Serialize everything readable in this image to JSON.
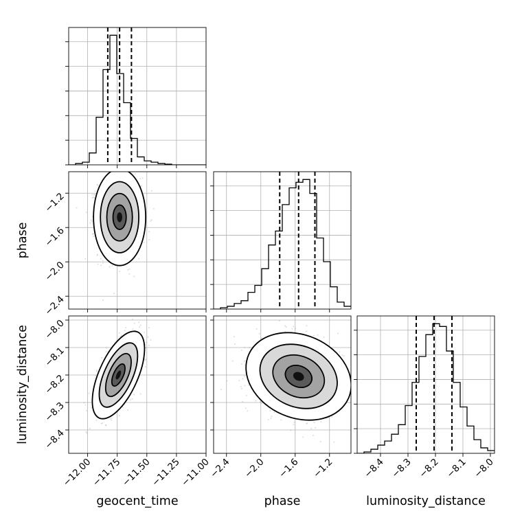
{
  "chart_data": {
    "type": "corner",
    "grid": true,
    "parameters": [
      {
        "name": "geocent_time",
        "label": "geocent_time",
        "range": [
          -12.16,
          -11.0
        ],
        "ticks": [
          -12.0,
          -11.75,
          -11.5,
          -11.25,
          -11.0
        ],
        "tick_labels": [
          "−12.00",
          "−11.75",
          "−11.50",
          "−11.25",
          "−11.00"
        ],
        "quantiles": [
          -11.83,
          -11.73,
          -11.63
        ],
        "median": -11.73
      },
      {
        "name": "phase",
        "label": "phase",
        "range": [
          -2.55,
          -0.95
        ],
        "ticks": [
          -2.4,
          -2.0,
          -1.6,
          -1.2
        ],
        "tick_labels": [
          "−2.4",
          "−2.0",
          "−1.6",
          "−1.2"
        ],
        "quantiles": [
          -1.78,
          -1.56,
          -1.37
        ],
        "median": -1.56
      },
      {
        "name": "luminosity_distance",
        "label": "luminosity_distance",
        "range": [
          -8.485,
          -7.985
        ],
        "ticks": [
          -8.4,
          -8.3,
          -8.2,
          -8.1,
          -8.0
        ],
        "tick_labels": [
          "−8.4",
          "−8.3",
          "−8.2",
          "−8.1",
          "−8.0"
        ],
        "quantiles": [
          -8.27,
          -8.205,
          -8.14
        ],
        "median": -8.205
      }
    ],
    "histograms": [
      {
        "param": "geocent_time",
        "bin_edges": [
          -12.16,
          -12.102,
          -12.044,
          -11.986,
          -11.928,
          -11.87,
          -11.812,
          -11.754,
          -11.696,
          -11.638,
          -11.58,
          -11.522,
          -11.464,
          -11.406,
          -11.348,
          -11.29,
          -11.232,
          -11.174,
          -11.116,
          -11.058,
          -11.0
        ],
        "counts": [
          0,
          1,
          2,
          9,
          36,
          72,
          98,
          69,
          47,
          20,
          6,
          3,
          2,
          1,
          0.5,
          0,
          0,
          0,
          0,
          0
        ]
      },
      {
        "param": "phase",
        "bin_edges": [
          -2.55,
          -2.47,
          -2.39,
          -2.31,
          -2.23,
          -2.15,
          -2.07,
          -1.99,
          -1.91,
          -1.83,
          -1.75,
          -1.67,
          -1.59,
          -1.51,
          -1.43,
          -1.35,
          -1.27,
          -1.19,
          -1.11,
          -1.03,
          -0.95
        ],
        "counts": [
          0,
          1,
          2,
          4,
          6,
          12,
          17,
          29,
          46,
          56,
          75,
          87,
          91,
          93,
          83,
          51,
          34,
          16,
          5,
          2
        ]
      },
      {
        "param": "luminosity_distance",
        "bin_edges": [
          -8.485,
          -8.46,
          -8.435,
          -8.41,
          -8.385,
          -8.36,
          -8.335,
          -8.31,
          -8.285,
          -8.26,
          -8.235,
          -8.21,
          -8.185,
          -8.16,
          -8.135,
          -8.11,
          -8.085,
          -8.06,
          -8.035,
          -8.01,
          -7.985
        ],
        "counts": [
          0,
          1,
          3,
          6,
          9,
          14,
          21,
          35,
          52,
          71,
          87,
          95,
          93,
          75,
          52,
          34,
          20,
          10,
          4,
          2
        ]
      }
    ],
    "pairs": [
      {
        "x": "geocent_time",
        "y": "phase",
        "center": [
          -11.73,
          -1.48
        ],
        "spread": [
          0.09,
          0.23
        ],
        "correlation": 0.0
      },
      {
        "x": "geocent_time",
        "y": "luminosity_distance",
        "center": [
          -11.74,
          -8.2
        ],
        "spread": [
          0.09,
          0.065
        ],
        "correlation": 0.6
      },
      {
        "x": "phase",
        "y": "luminosity_distance",
        "center": [
          -1.56,
          -8.205
        ],
        "spread": [
          0.25,
          0.065
        ],
        "correlation": -0.2
      }
    ]
  }
}
